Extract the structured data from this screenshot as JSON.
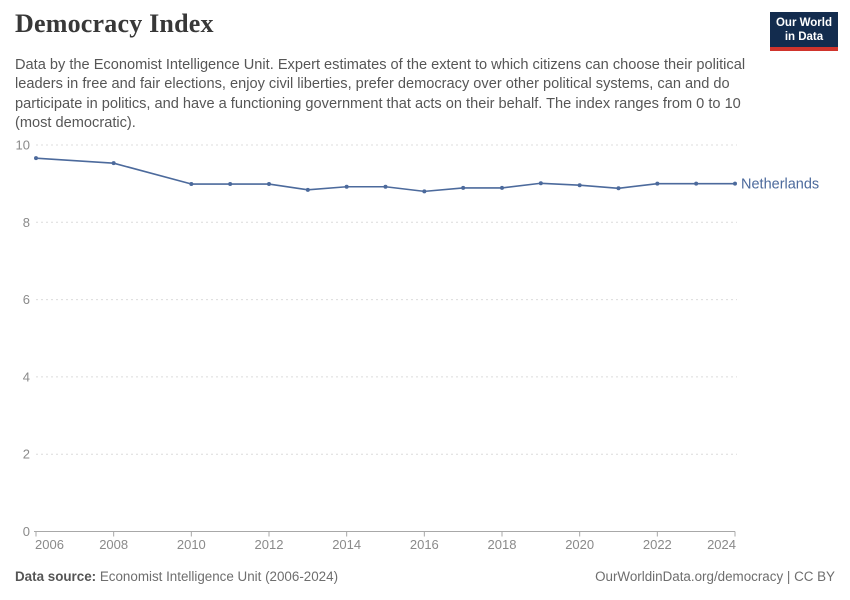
{
  "header": {
    "title": "Democracy Index",
    "logo_line1": "Our World",
    "logo_line2": "in Data"
  },
  "subtitle": "Data by the Economist Intelligence Unit. Expert estimates of the extent to which citizens can choose their political leaders in free and fair elections, enjoy civil liberties, prefer democracy over other political systems, can and do participate in politics, and have a functioning government that acts on their behalf. The index ranges from 0 to 10 (most democratic).",
  "chart_data": {
    "type": "line",
    "title": "Democracy Index",
    "xlabel": "",
    "ylabel": "",
    "xlim": [
      2006,
      2024
    ],
    "ylim": [
      0,
      10
    ],
    "x_ticks": [
      2006,
      2008,
      2010,
      2012,
      2014,
      2016,
      2018,
      2020,
      2022,
      2024
    ],
    "y_ticks": [
      0,
      2,
      4,
      6,
      8,
      10
    ],
    "grid": "horizontal-dashed",
    "legend_position": "end-of-line-label",
    "series": [
      {
        "name": "Netherlands",
        "color": "#4c6a9c",
        "x": [
          2006,
          2008,
          2010,
          2011,
          2012,
          2013,
          2014,
          2015,
          2016,
          2017,
          2018,
          2019,
          2020,
          2021,
          2022,
          2023,
          2024
        ],
        "values": [
          9.66,
          9.53,
          8.99,
          8.99,
          8.99,
          8.84,
          8.92,
          8.92,
          8.8,
          8.89,
          8.89,
          9.01,
          8.96,
          8.88,
          9.0,
          9.0,
          9.0
        ]
      }
    ]
  },
  "footer": {
    "source_label": "Data source:",
    "source_text": " Economist Intelligence Unit (2006-2024)",
    "citation": "OurWorldinData.org/democracy | CC BY"
  },
  "colors": {
    "line": "#4c6a9c",
    "entity_label": "#4c6a9c",
    "grid": "#dcdcdc",
    "axis": "#a8a8a8",
    "tick_label": "#8a8a8a",
    "logo_bg": "#132c4e",
    "logo_red": "#d0342c"
  }
}
